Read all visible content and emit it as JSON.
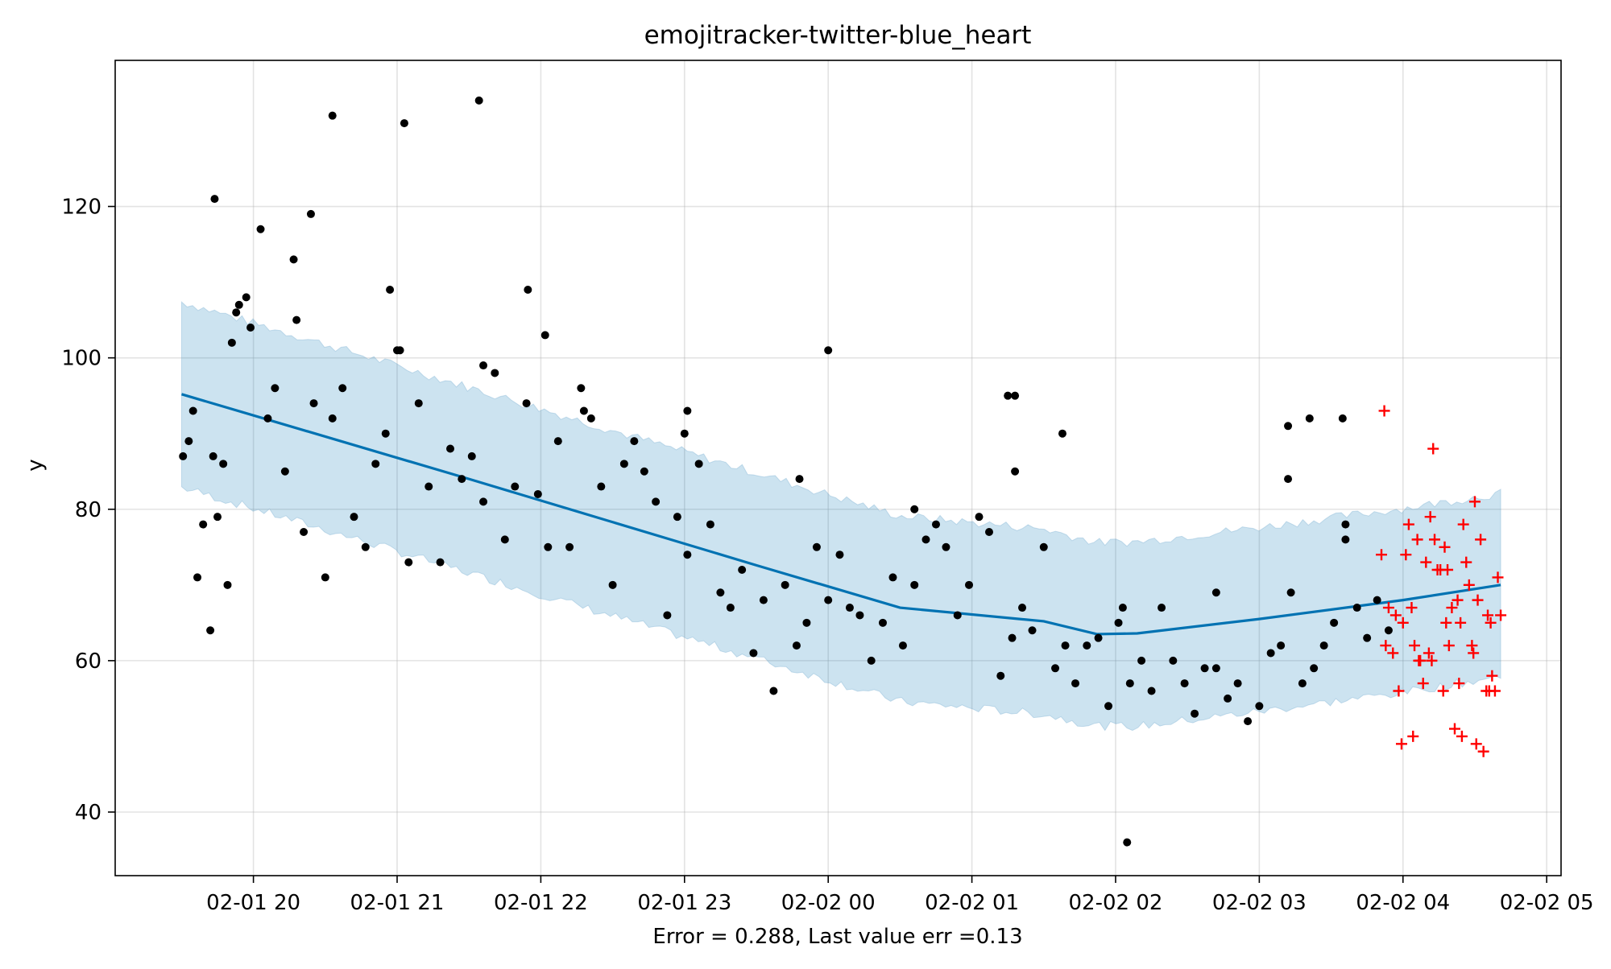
{
  "chart_data": {
    "type": "scatter",
    "title": "emojitracker-twitter-blue_heart",
    "xlabel": "Error = 0.288, Last value err =0.13",
    "ylabel": "y",
    "x_ticks": [
      "02-01 20",
      "02-01 21",
      "02-01 22",
      "02-01 23",
      "02-02 00",
      "02-02 01",
      "02-02 02",
      "02-02 03",
      "02-02 04",
      "02-02 05"
    ],
    "x_tick_hours": [
      0,
      1,
      2,
      3,
      4,
      5,
      6,
      7,
      8,
      9
    ],
    "x_axis_note": "x values are hours after 02-01 20:00",
    "xlim": [
      -0.962,
      9.1
    ],
    "y_ticks": [
      40,
      60,
      80,
      100,
      120
    ],
    "ylim": [
      31.6,
      139.3
    ],
    "grid": true,
    "colors": {
      "observed": "#000000",
      "forecast_line": "#0072B2",
      "uncertainty_band": "#0072B2",
      "test_points": "#ff0000"
    },
    "series": [
      {
        "name": "forecast",
        "kind": "line",
        "x": [
          -0.5,
          0.5,
          1.5,
          2.5,
          3.5,
          4.5,
          5.5,
          5.87,
          6.15,
          7.0,
          8.0,
          8.68
        ],
        "y": [
          95.2,
          89.6,
          84.0,
          78.3,
          72.6,
          67.0,
          65.2,
          63.5,
          63.6,
          65.5,
          68.0,
          70.0
        ],
        "lower": [
          82.9,
          77.3,
          71.6,
          65.9,
          60.3,
          54.6,
          52.9,
          51.4,
          51.3,
          53.3,
          55.8,
          57.9
        ],
        "upper": [
          107.4,
          101.8,
          96.1,
          90.4,
          84.8,
          79.1,
          77.4,
          75.6,
          75.7,
          77.6,
          80.1,
          82.1
        ]
      },
      {
        "name": "observed",
        "kind": "scatter",
        "x": [
          -0.49,
          -0.45,
          -0.42,
          -0.39,
          -0.35,
          -0.3,
          -0.28,
          -0.25,
          -0.21,
          -0.18,
          -0.15,
          -0.12,
          -0.05,
          -0.02,
          0.05,
          0.1,
          0.15,
          0.22,
          0.28,
          0.35,
          0.42,
          0.5,
          0.55,
          0.62,
          0.7,
          0.78,
          0.85,
          0.92,
          1.02,
          1.08,
          1.15,
          1.22,
          1.3,
          1.37,
          1.45,
          1.52,
          1.6,
          1.68,
          1.75,
          1.82,
          1.9,
          1.98,
          2.05,
          2.12,
          2.2,
          2.28,
          2.35,
          2.42,
          2.5,
          2.58,
          2.65,
          2.72,
          2.8,
          2.88,
          2.95,
          3.02,
          3.1,
          3.18,
          3.25,
          3.32,
          3.4,
          3.48,
          3.55,
          3.62,
          3.7,
          3.78,
          3.85,
          3.92,
          4.0,
          4.08,
          4.15,
          4.22,
          4.3,
          4.38,
          4.45,
          4.52,
          4.6,
          4.68,
          4.75,
          4.82,
          4.9,
          4.98,
          5.05,
          5.12,
          5.2,
          5.28,
          5.35,
          5.42,
          5.5,
          5.58,
          5.65,
          5.72,
          5.8,
          5.88,
          5.95,
          6.02,
          6.1,
          6.18,
          6.25,
          6.32,
          6.4,
          6.48,
          6.55,
          6.62,
          6.7,
          6.78,
          6.85,
          6.92,
          7.0,
          7.08,
          7.15,
          7.22,
          7.3,
          7.38,
          7.45,
          7.52,
          7.6,
          7.68,
          7.75,
          7.82,
          7.9,
          -0.1,
          0.3,
          1.0,
          1.6,
          2.3,
          3.0,
          3.8,
          4.6,
          5.3,
          6.05,
          6.7,
          7.2,
          7.6,
          -0.27,
          0.4,
          0.55,
          0.95,
          1.05,
          1.57,
          1.91,
          2.03,
          3.02,
          4.0,
          5.25,
          5.3,
          5.63,
          6.08,
          7.2,
          7.35,
          7.58
        ],
        "y": [
          87,
          89,
          93,
          71,
          78,
          64,
          87,
          79,
          86,
          70,
          102,
          106,
          108,
          104,
          117,
          92,
          96,
          85,
          113,
          77,
          94,
          71,
          92,
          96,
          79,
          75,
          86,
          90,
          101,
          73,
          94,
          83,
          73,
          88,
          84,
          87,
          81,
          98,
          76,
          83,
          94,
          82,
          75,
          89,
          75,
          96,
          92,
          83,
          70,
          86,
          89,
          85,
          81,
          66,
          79,
          74,
          86,
          78,
          69,
          67,
          72,
          61,
          68,
          56,
          70,
          62,
          65,
          75,
          68,
          74,
          67,
          66,
          60,
          65,
          71,
          62,
          70,
          76,
          78,
          75,
          66,
          70,
          79,
          77,
          58,
          63,
          67,
          64,
          75,
          59,
          62,
          57,
          62,
          63,
          54,
          65,
          57,
          60,
          56,
          67,
          60,
          57,
          53,
          59,
          59,
          55,
          57,
          52,
          54,
          61,
          62,
          69,
          57,
          59,
          62,
          65,
          78,
          67,
          63,
          68,
          64,
          107,
          105,
          101,
          99,
          93,
          90,
          84,
          80,
          85,
          67,
          69,
          84,
          76,
          121,
          119,
          132,
          109,
          131,
          134,
          109,
          103,
          93,
          101,
          95,
          95,
          90,
          36,
          91,
          92,
          92
        ],
        "marker": "dot"
      },
      {
        "name": "test",
        "kind": "scatter",
        "x": [
          7.85,
          7.88,
          7.9,
          7.93,
          7.95,
          7.97,
          8.0,
          8.02,
          8.04,
          8.06,
          8.08,
          8.1,
          8.12,
          8.14,
          8.16,
          8.18,
          8.2,
          8.22,
          8.24,
          8.26,
          8.28,
          8.3,
          8.32,
          8.34,
          8.36,
          8.38,
          8.4,
          8.42,
          8.44,
          8.46,
          8.48,
          8.5,
          8.52,
          8.54,
          8.56,
          8.58,
          8.6,
          8.62,
          8.64,
          8.66,
          8.68,
          7.87,
          7.99,
          8.07,
          8.19,
          8.29,
          8.39,
          8.49,
          8.59,
          8.11,
          8.21,
          8.31,
          8.41,
          8.51,
          8.61
        ],
        "y": [
          74,
          62,
          67,
          61,
          66,
          56,
          65,
          74,
          78,
          67,
          62,
          76,
          60,
          57,
          73,
          61,
          60,
          76,
          72,
          72,
          56,
          65,
          62,
          67,
          51,
          68,
          65,
          78,
          73,
          70,
          62,
          81,
          68,
          76,
          48,
          56,
          56,
          58,
          56,
          71,
          66,
          93,
          49,
          50,
          79,
          75,
          57,
          61,
          66,
          60,
          88,
          72,
          50,
          49,
          65
        ],
        "marker": "plus"
      }
    ]
  }
}
